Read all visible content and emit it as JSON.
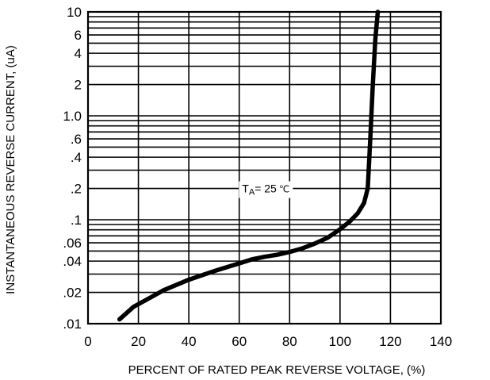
{
  "chart_data": {
    "type": "line",
    "title": "",
    "xlabel": "PERCENT OF RATED PEAK REVERSE VOLTAGE, (%)",
    "ylabel": "INSTANTANEOUS REVERSE CURRENT, (uA)",
    "xlim": [
      0,
      140
    ],
    "ylim": [
      0.01,
      10
    ],
    "yscale": "log",
    "grid": true,
    "legend": "none",
    "x_ticks": [
      0,
      20,
      40,
      60,
      80,
      100,
      120,
      140
    ],
    "x_tick_labels": [
      "0",
      "20",
      "40",
      "60",
      "80",
      "100",
      "120",
      "140"
    ],
    "y_ticks": [
      0.01,
      0.02,
      0.04,
      0.06,
      0.1,
      0.2,
      0.4,
      0.6,
      1,
      2,
      4,
      6,
      10
    ],
    "y_tick_labels": [
      ".01",
      ".02",
      ".04",
      ".06",
      ".1",
      ".2",
      ".4",
      ".6",
      "1.0",
      "2",
      "4",
      "6",
      "10"
    ],
    "y_grid_lines": [
      0.01,
      0.02,
      0.03,
      0.04,
      0.05,
      0.06,
      0.07,
      0.08,
      0.09,
      0.1,
      0.2,
      0.3,
      0.4,
      0.5,
      0.6,
      0.7,
      0.8,
      0.9,
      1,
      2,
      3,
      4,
      5,
      6,
      7,
      8,
      9,
      10
    ],
    "series": [
      {
        "x": [
          12.5,
          18,
          25,
          30,
          40,
          50,
          60,
          65,
          70,
          75,
          80,
          85,
          90,
          95,
          100,
          104,
          107,
          109.5,
          111,
          112,
          113,
          114,
          115
        ],
        "y": [
          0.011,
          0.0145,
          0.018,
          0.021,
          0.0265,
          0.032,
          0.038,
          0.0415,
          0.044,
          0.046,
          0.049,
          0.053,
          0.059,
          0.067,
          0.081,
          0.097,
          0.115,
          0.145,
          0.2,
          0.6,
          2.0,
          5.5,
          10
        ]
      }
    ],
    "annotation": {
      "text_main": "T",
      "text_sub": "A",
      "text_value": "= 25",
      "text_unit": "℃",
      "x": 80,
      "y": 0.2
    },
    "colors": {
      "curve": "#000000",
      "grid": "#000000",
      "background": "#ffffff"
    }
  }
}
